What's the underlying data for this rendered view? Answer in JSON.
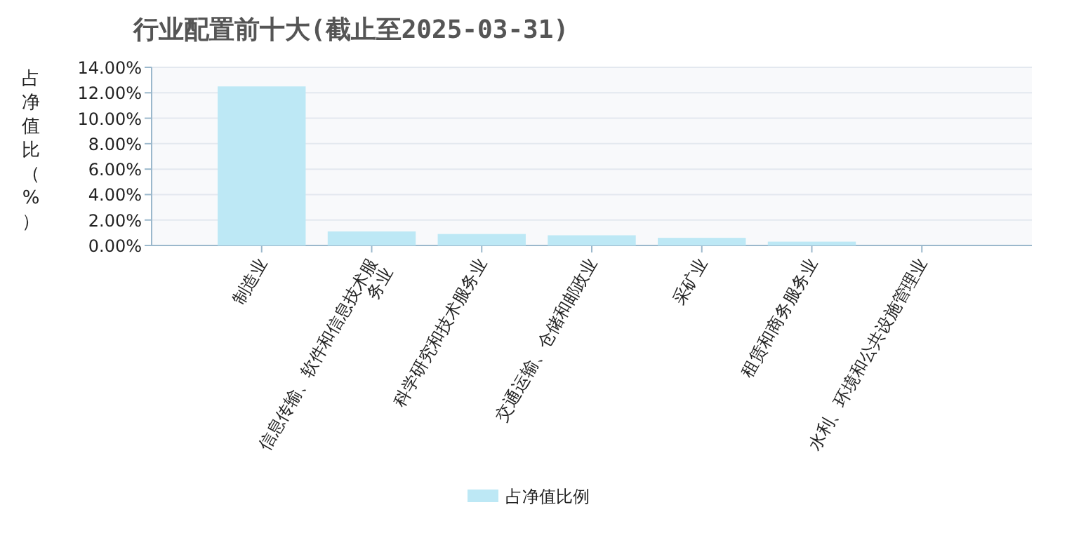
{
  "chart_data": {
    "type": "bar",
    "title": "行业配置前十大(截止至2025-03-31)",
    "ylabel": "占净值比（%）",
    "categories": [
      "制造业",
      "信息传输、软件和信息技术服务业",
      "科学研究和技术服务业",
      "交通运输、仓储和邮政业",
      "采矿业",
      "租赁和商务服务业",
      "水利、环境和公共设施管理业"
    ],
    "series": [
      {
        "name": "占净值比例",
        "color": "#bde8f5",
        "values": [
          12.5,
          1.1,
          0.9,
          0.8,
          0.6,
          0.3,
          null
        ]
      }
    ],
    "ylim": [
      0,
      14
    ],
    "yticks": [
      {
        "value": 0,
        "label": "0.00%"
      },
      {
        "value": 2,
        "label": "2.00%"
      },
      {
        "value": 4,
        "label": "4.00%"
      },
      {
        "value": 6,
        "label": "6.00%"
      },
      {
        "value": 8,
        "label": "8.00%"
      },
      {
        "value": 10,
        "label": "10.00%"
      },
      {
        "value": 12,
        "label": "12.00%"
      },
      {
        "value": 14,
        "label": "14.00%"
      }
    ],
    "grid": "y",
    "legend": "bottom"
  }
}
